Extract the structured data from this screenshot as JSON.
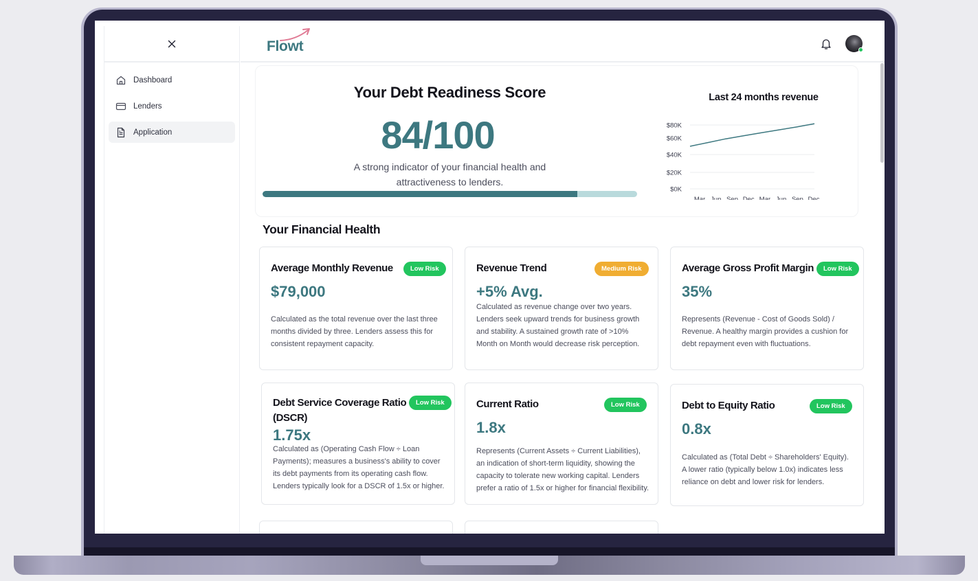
{
  "app": {
    "logo_text": "Flowt",
    "colors": {
      "brand": "#3d7880",
      "accent_arrow": "#e07a94",
      "low_risk": "#22c55e",
      "medium_risk": "#f0ad32"
    }
  },
  "sidebar": {
    "close_icon": "close-icon",
    "items": [
      {
        "label": "Dashboard",
        "icon": "home-icon",
        "active": false
      },
      {
        "label": "Lenders",
        "icon": "credit-card-icon",
        "active": false
      },
      {
        "label": "Application",
        "icon": "document-icon",
        "active": true
      }
    ]
  },
  "header": {
    "notification_icon": "bell-icon",
    "avatar_status": "online"
  },
  "score": {
    "title": "Your Debt Readiness Score",
    "value": "84/100",
    "percent": 84,
    "description": "A strong indicator of your financial health and attractiveness to lenders."
  },
  "revenue_chart": {
    "title": "Last 24 months revenue",
    "y_ticks": [
      "$80K",
      "$60K",
      "$40K",
      "$20K",
      "$0K"
    ],
    "x_ticks": [
      "Mar",
      "Jun",
      "Sep",
      "Dec",
      "Mar",
      "Jun",
      "Sep",
      "Dec"
    ]
  },
  "chart_data": {
    "type": "line",
    "title": "Last 24 months revenue",
    "xlabel": "",
    "ylabel": "",
    "categories": [
      "Mar",
      "Jun",
      "Sep",
      "Dec",
      "Mar",
      "Jun",
      "Sep",
      "Dec"
    ],
    "series": [
      {
        "name": "Revenue",
        "values": [
          50000,
          54500,
          59000,
          63500,
          68000,
          72500,
          77000,
          82000
        ]
      }
    ],
    "y_ticks": [
      0,
      20000,
      40000,
      60000,
      80000
    ],
    "ylim": [
      0,
      85000
    ],
    "grid": true,
    "legend": "none"
  },
  "financial_health": {
    "title": "Your Financial Health",
    "metrics": [
      {
        "title": "Average Monthly Revenue",
        "badge": "Low Risk",
        "value": "$79,000",
        "description": "Calculated as the total revenue over the last three months divided by three. Lenders assess this for consistent repayment capacity."
      },
      {
        "title": "Revenue Trend",
        "badge": "Medium Risk",
        "value": "+5% Avg.",
        "description": "Calculated as revenue change over two years. Lenders seek upward trends for business growth and stability. A sustained growth rate of >10% Month on Month would decrease risk perception."
      },
      {
        "title": "Average Gross Profit Margin",
        "badge": "Low Risk",
        "value": "35%",
        "description": "Represents (Revenue - Cost of Goods Sold) / Revenue. A healthy margin provides a cushion for debt repayment even with fluctuations."
      },
      {
        "title": "Debt Service Coverage Ratio (DSCR)",
        "badge": "Low Risk",
        "value": "1.75x",
        "description": "Calculated as (Operating Cash Flow ÷ Loan Payments); measures a business's ability to cover its debt payments from its operating cash flow. Lenders typically look for a DSCR of 1.5x or higher."
      },
      {
        "title": "Current Ratio",
        "badge": "Low Risk",
        "value": "1.8x",
        "description": "Represents (Current Assets ÷ Current Liabilities), an indication of short-term liquidity, showing the capacity to tolerate new working capital. Lenders prefer a ratio of 1.5x or higher for financial flexibility."
      },
      {
        "title": "Debt to Equity Ratio",
        "badge": "Low Risk",
        "value": "0.8x",
        "description": "Calculated as (Total Debt ÷ Shareholders' Equity).  A lower ratio (typically below 1.0x) indicates less reliance on debt and lower risk for lenders."
      }
    ]
  }
}
